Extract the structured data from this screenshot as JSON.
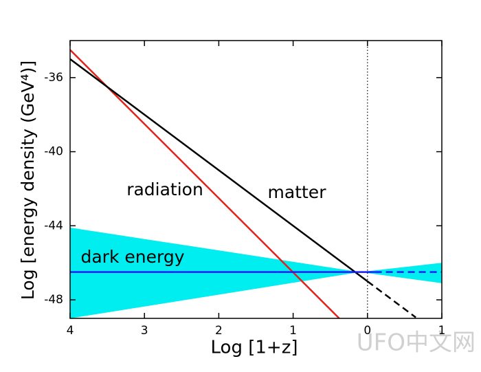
{
  "chart_data": {
    "type": "line",
    "xlabel": "Log [1+z]",
    "ylabel": "Log [energy density (GeV⁴)]",
    "xlim": [
      4,
      -1
    ],
    "ylim": [
      -49,
      -34
    ],
    "xticks": [
      4,
      3,
      2,
      1,
      0,
      {
        "value": -1,
        "label": "1"
      }
    ],
    "yticks": [
      -36,
      -40,
      -44,
      -48
    ],
    "vline": 0,
    "band": {
      "color": "#00eef0",
      "x": [
        4,
        0.1,
        -1
      ],
      "upper": [
        -44.1,
        -46.5,
        -46.0
      ],
      "lower": [
        -49,
        -46.5,
        -47.1
      ]
    },
    "series": [
      {
        "name": "radiation",
        "color": "#e3201b",
        "x": [
          4,
          0.38
        ],
        "values": [
          -34.5,
          -49
        ]
      },
      {
        "name": "matter",
        "color": "#000000",
        "x": [
          4,
          0
        ],
        "values": [
          -35,
          -47
        ]
      },
      {
        "color": "#000000",
        "style": "dashed",
        "x": [
          0,
          -0.65
        ],
        "values": [
          -47,
          -48.95
        ]
      },
      {
        "name": "dark energy",
        "color": "#1a1aff",
        "x": [
          4,
          -0.1
        ],
        "values": [
          -46.5,
          -46.5
        ]
      },
      {
        "color": "#1a1aff",
        "style": "dashed",
        "x": [
          -0.1,
          -1
        ],
        "values": [
          -46.5,
          -46.5
        ]
      }
    ],
    "watermark": "UFO中文网"
  }
}
